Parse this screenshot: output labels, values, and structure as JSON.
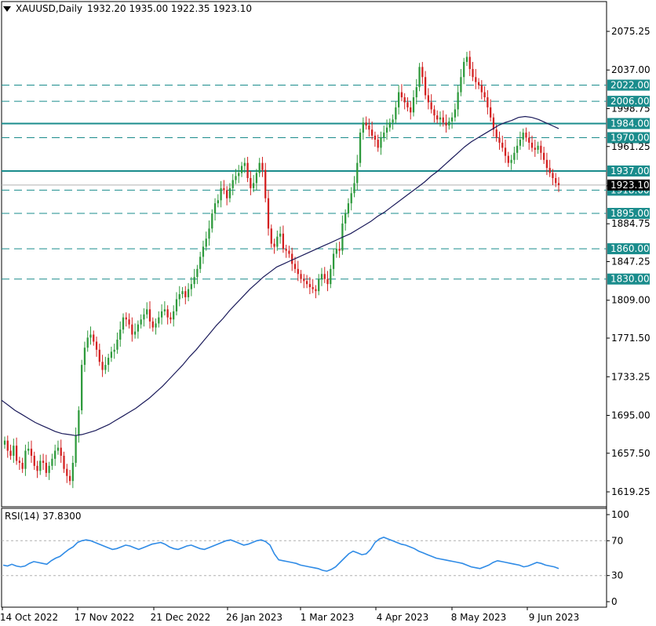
{
  "header": {
    "symbol": "XAUUSD,Daily",
    "ohlc": "1932.20 1935.00 1922.35 1923.10"
  },
  "rsi_header": {
    "label": "RSI(14) 37.8300"
  },
  "colors": {
    "bull": "#2e9a3c",
    "bear": "#d32020",
    "ma": "#1a1a5a",
    "level": "#1a8c8c",
    "rsi": "#2f8be6"
  },
  "chart_data": [
    {
      "type": "candlestick",
      "symbol": "XAUUSD",
      "timeframe": "Daily",
      "ylim": [
        1600,
        2100
      ],
      "y_ticks": [
        "2075.25",
        "2037.00",
        "1998.75",
        "1961.25",
        "1922.35",
        "1884.75",
        "1847.25",
        "1809.00",
        "1771.50",
        "1733.25",
        "1695.00",
        "1657.50",
        "1619.25"
      ],
      "x_ticks": [
        "14 Oct 2022",
        "17 Nov 2022",
        "21 Dec 2022",
        "26 Jan 2023",
        "1 Mar 2023",
        "4 Apr 2023",
        "8 May 2023",
        "9 Jun 2023"
      ],
      "levels": [
        {
          "value": 2022.0,
          "label": "2022.00",
          "style": "dashed"
        },
        {
          "value": 2006.0,
          "label": "2006.00",
          "style": "dashed"
        },
        {
          "value": 1984.0,
          "label": "1984.00",
          "style": "solid"
        },
        {
          "value": 1970.0,
          "label": "1970.00",
          "style": "dashed"
        },
        {
          "value": 1937.0,
          "label": "1937.00",
          "style": "solid"
        },
        {
          "value": 1918.0,
          "label": "1918.00",
          "style": "dashed"
        },
        {
          "value": 1895.0,
          "label": "1895.00",
          "style": "dashed"
        },
        {
          "value": 1860.0,
          "label": "1860.00",
          "style": "dashed"
        },
        {
          "value": 1830.0,
          "label": "1830.00",
          "style": "dashed"
        }
      ],
      "current_price": {
        "value": 1923.1,
        "label": "1923.10"
      },
      "close_series": [
        1670,
        1660,
        1655,
        1665,
        1650,
        1648,
        1642,
        1660,
        1662,
        1655,
        1645,
        1640,
        1650,
        1648,
        1638,
        1645,
        1652,
        1660,
        1663,
        1655,
        1642,
        1635,
        1630,
        1648,
        1675,
        1700,
        1745,
        1762,
        1772,
        1775,
        1768,
        1760,
        1748,
        1740,
        1745,
        1752,
        1758,
        1760,
        1770,
        1780,
        1792,
        1790,
        1785,
        1775,
        1778,
        1785,
        1790,
        1795,
        1800,
        1788,
        1782,
        1786,
        1792,
        1798,
        1800,
        1792,
        1790,
        1798,
        1810,
        1815,
        1818,
        1812,
        1820,
        1825,
        1832,
        1840,
        1852,
        1862,
        1870,
        1880,
        1895,
        1905,
        1908,
        1920,
        1918,
        1910,
        1920,
        1928,
        1932,
        1935,
        1942,
        1945,
        1930,
        1920,
        1925,
        1935,
        1945,
        1938,
        1910,
        1880,
        1865,
        1862,
        1872,
        1875,
        1860,
        1858,
        1855,
        1845,
        1840,
        1835,
        1830,
        1828,
        1825,
        1822,
        1820,
        1818,
        1830,
        1835,
        1830,
        1825,
        1840,
        1855,
        1860,
        1858,
        1885,
        1895,
        1905,
        1915,
        1925,
        1945,
        1975,
        1985,
        1982,
        1978,
        1972,
        1968,
        1960,
        1970,
        1975,
        1980,
        1985,
        1988,
        2000,
        2015,
        2010,
        2005,
        2000,
        1995,
        2010,
        2020,
        2040,
        2030,
        2012,
        2005,
        1998,
        1992,
        1988,
        1990,
        1985,
        1982,
        1986,
        1990,
        1998,
        2015,
        2030,
        2045,
        2050,
        2038,
        2030,
        2025,
        2022,
        2015,
        2010,
        2000,
        1990,
        1978,
        1970,
        1965,
        1960,
        1952,
        1945,
        1948,
        1955,
        1962,
        1968,
        1975,
        1970,
        1965,
        1960,
        1958,
        1962,
        1955,
        1948,
        1940,
        1935,
        1930,
        1925,
        1923.1
      ],
      "ma_series": [
        1710,
        1705,
        1700,
        1696,
        1692,
        1688,
        1685,
        1682,
        1679,
        1677,
        1676,
        1675,
        1676,
        1678,
        1680,
        1683,
        1686,
        1690,
        1694,
        1698,
        1702,
        1707,
        1712,
        1718,
        1724,
        1731,
        1738,
        1745,
        1753,
        1760,
        1768,
        1776,
        1784,
        1791,
        1799,
        1806,
        1813,
        1820,
        1826,
        1832,
        1837,
        1842,
        1845,
        1848,
        1851,
        1854,
        1857,
        1860,
        1863,
        1866,
        1869,
        1872,
        1875,
        1879,
        1883,
        1887,
        1892,
        1896,
        1901,
        1906,
        1911,
        1916,
        1921,
        1926,
        1932,
        1937,
        1943,
        1949,
        1955,
        1961,
        1966,
        1970,
        1974,
        1978,
        1982,
        1985,
        1987,
        1990,
        1991,
        1990,
        1988,
        1985,
        1982,
        1979
      ],
      "rsi": {
        "period": 14,
        "value": 37.83,
        "ylim": [
          0,
          100
        ],
        "y_ticks": [
          "100",
          "70",
          "30",
          "0"
        ],
        "levels": [
          70,
          30
        ],
        "series": [
          42,
          41,
          43,
          41,
          40,
          41,
          44,
          46,
          45,
          44,
          43,
          47,
          50,
          52,
          56,
          60,
          63,
          68,
          70,
          71,
          70,
          68,
          66,
          64,
          62,
          60,
          61,
          63,
          65,
          64,
          62,
          60,
          62,
          64,
          66,
          67,
          68,
          66,
          63,
          61,
          60,
          62,
          64,
          65,
          63,
          61,
          60,
          62,
          64,
          66,
          68,
          70,
          71,
          69,
          67,
          65,
          66,
          68,
          70,
          71,
          69,
          65,
          55,
          48,
          47,
          46,
          45,
          44,
          42,
          41,
          40,
          39,
          38,
          36,
          35,
          37,
          40,
          45,
          50,
          55,
          58,
          56,
          54,
          55,
          60,
          68,
          72,
          74,
          72,
          70,
          68,
          66,
          65,
          63,
          61,
          58,
          56,
          54,
          52,
          50,
          49,
          48,
          47,
          46,
          45,
          44,
          42,
          40,
          39,
          38,
          40,
          42,
          45,
          47,
          46,
          45,
          44,
          43,
          42,
          40,
          41,
          43,
          45,
          44,
          42,
          41,
          40,
          38
        ]
      }
    }
  ]
}
